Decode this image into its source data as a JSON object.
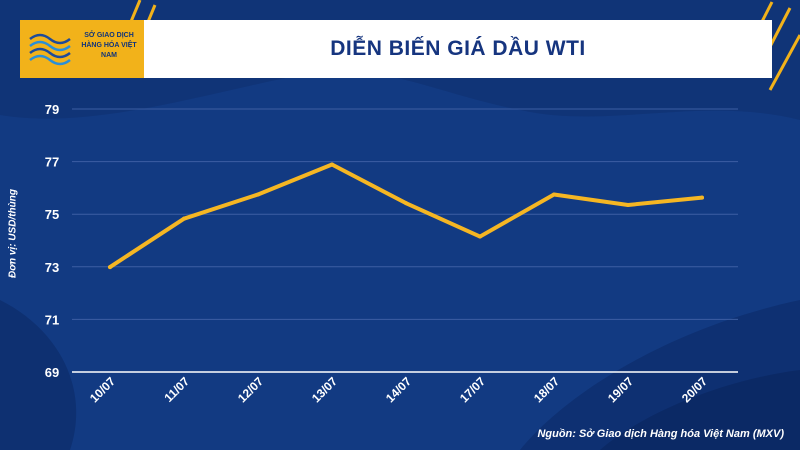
{
  "header": {
    "logo_text": "SỞ GIAO DỊCH HÀNG HÓA VIỆT NAM",
    "title": "DIỄN BIẾN GIÁ DẦU WTI"
  },
  "chart_data": {
    "type": "line",
    "title": "DIỄN BIẾN GIÁ DẦU WTI",
    "xlabel": "",
    "ylabel": "Đơn vị: USD/thùng",
    "categories": [
      "10/07",
      "11/07",
      "12/07",
      "13/07",
      "14/07",
      "17/07",
      "18/07",
      "19/07",
      "20/07"
    ],
    "series": [
      {
        "values": [
          72.99,
          74.83,
          75.75,
          76.89,
          75.42,
          74.15,
          75.75,
          75.35,
          75.63
        ]
      }
    ],
    "yticks": [
      69,
      71,
      73,
      75,
      77,
      79
    ],
    "ylim": [
      69,
      79
    ],
    "grid": true,
    "line_color": "#f5b623"
  },
  "source": "Nguồn: Sở Giao dịch Hàng hóa Việt Nam (MXV)"
}
